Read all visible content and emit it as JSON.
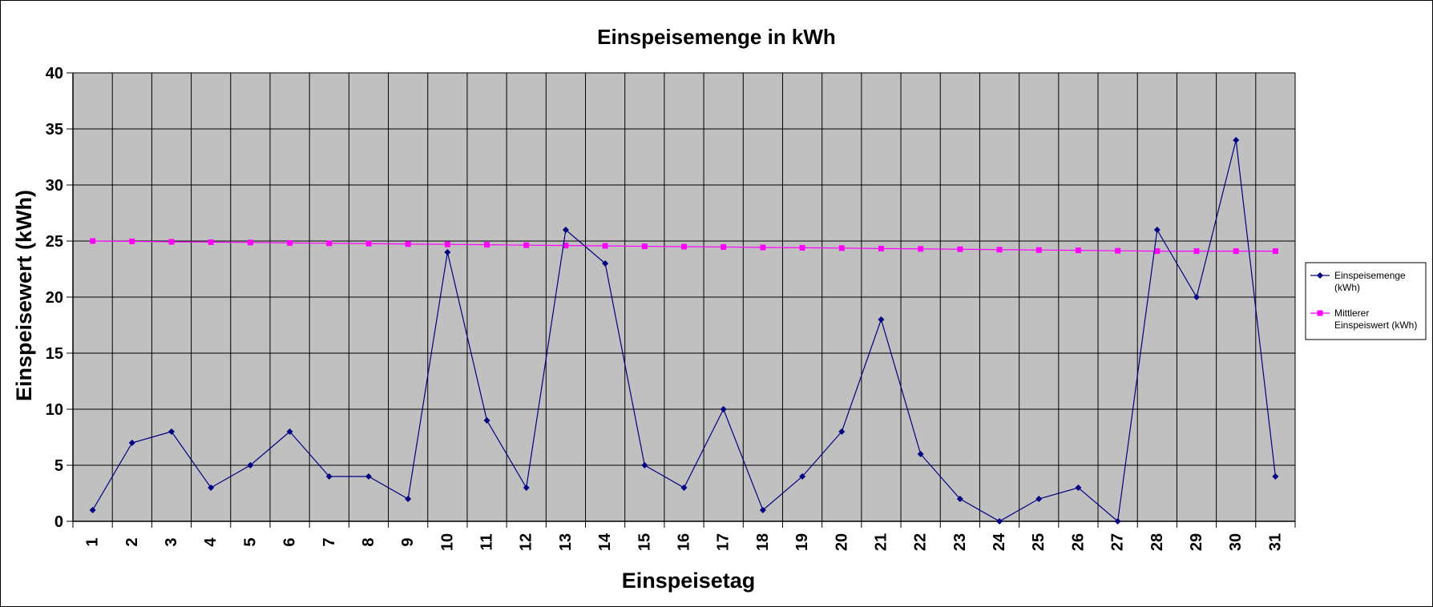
{
  "chart_data": {
    "type": "line",
    "title": "Einspeisemenge in kWh",
    "xlabel": "Einspeisetag",
    "ylabel": "Einspeisewert  (kWh)",
    "ylim": [
      0,
      40
    ],
    "ytick_step": 5,
    "grid": true,
    "legend_position": "right",
    "plot_background": "#c0c0c0",
    "categories": [
      1,
      2,
      3,
      4,
      5,
      6,
      7,
      8,
      9,
      10,
      11,
      12,
      13,
      14,
      15,
      16,
      17,
      18,
      19,
      20,
      21,
      22,
      23,
      24,
      25,
      26,
      27,
      28,
      29,
      30,
      31
    ],
    "series": [
      {
        "name": "Einspeisemenge (kWh)",
        "legend_lines": [
          "Einspeisemenge",
          "(kWh)"
        ],
        "color": "#000080",
        "marker": "diamond",
        "values": [
          1,
          7,
          8,
          3,
          5,
          8,
          4,
          4,
          2,
          24,
          9,
          3,
          26,
          23,
          5,
          3,
          10,
          1,
          4,
          8,
          18,
          6,
          2,
          0,
          2,
          3,
          0,
          26,
          20,
          34,
          4
        ]
      },
      {
        "name": "Mittlerer Einspeiswert (kWh)",
        "legend_lines": [
          "Mittlerer",
          "Einspeiswert (kWh)"
        ],
        "color": "#ff00ff",
        "marker": "square",
        "values": [
          25,
          24.97,
          24.93,
          24.9,
          24.87,
          24.83,
          24.8,
          24.77,
          24.73,
          24.7,
          24.67,
          24.63,
          24.6,
          24.57,
          24.53,
          24.5,
          24.47,
          24.43,
          24.4,
          24.37,
          24.33,
          24.3,
          24.27,
          24.23,
          24.2,
          24.17,
          24.13,
          24.1,
          24.1,
          24.1,
          24.1
        ]
      }
    ]
  }
}
